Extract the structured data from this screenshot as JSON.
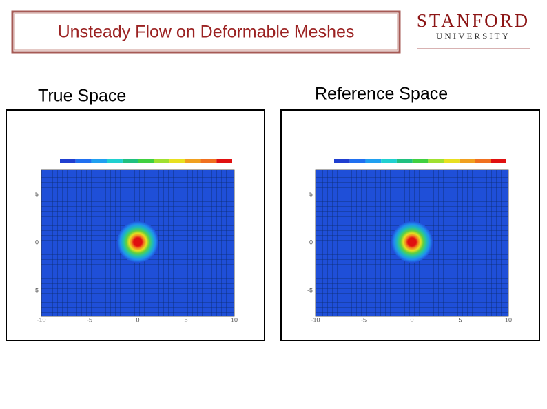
{
  "header": {
    "title": "Unsteady Flow on Deformable Meshes",
    "logo": {
      "name": "STANFORD",
      "sub": "UNIVERSITY"
    }
  },
  "panels": [
    {
      "label": "True Space",
      "xticks": [
        "-10",
        "-5",
        "0",
        "5",
        "10"
      ],
      "yticks": [
        "5",
        "0",
        "5"
      ]
    },
    {
      "label": "Reference Space",
      "xticks": [
        "-10",
        "-5",
        "0",
        "5",
        "10"
      ],
      "yticks": [
        "5",
        "0",
        "-5"
      ]
    }
  ]
}
